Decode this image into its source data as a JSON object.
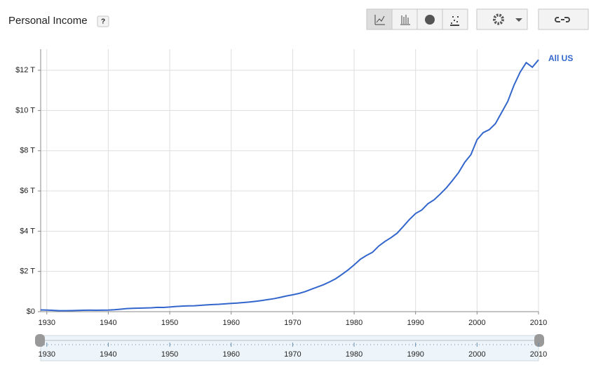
{
  "toolbar": {
    "help": "?"
  },
  "chart_data": {
    "type": "line",
    "title": "Personal Income",
    "x": [
      1929,
      1930,
      1931,
      1932,
      1933,
      1934,
      1935,
      1936,
      1937,
      1938,
      1939,
      1940,
      1941,
      1942,
      1943,
      1944,
      1945,
      1946,
      1947,
      1948,
      1949,
      1950,
      1951,
      1952,
      1953,
      1954,
      1955,
      1956,
      1957,
      1958,
      1959,
      1960,
      1961,
      1962,
      1963,
      1964,
      1965,
      1966,
      1967,
      1968,
      1969,
      1970,
      1971,
      1972,
      1973,
      1974,
      1975,
      1976,
      1977,
      1978,
      1979,
      1980,
      1981,
      1982,
      1983,
      1984,
      1985,
      1986,
      1987,
      1988,
      1989,
      1990,
      1991,
      1992,
      1993,
      1994,
      1995,
      1996,
      1997,
      1998,
      1999,
      2000,
      2001,
      2002,
      2003,
      2004,
      2005,
      2006,
      2007,
      2008,
      2009,
      2010
    ],
    "series": [
      {
        "name": "All US",
        "color": "#3366cc",
        "values": [
          0.085,
          0.077,
          0.065,
          0.05,
          0.047,
          0.054,
          0.06,
          0.069,
          0.074,
          0.069,
          0.073,
          0.079,
          0.097,
          0.124,
          0.152,
          0.166,
          0.173,
          0.181,
          0.192,
          0.212,
          0.21,
          0.23,
          0.258,
          0.273,
          0.289,
          0.292,
          0.313,
          0.336,
          0.353,
          0.365,
          0.389,
          0.41,
          0.427,
          0.455,
          0.479,
          0.514,
          0.555,
          0.603,
          0.648,
          0.712,
          0.78,
          0.838,
          0.903,
          0.992,
          1.111,
          1.223,
          1.337,
          1.478,
          1.637,
          1.846,
          2.07,
          2.324,
          2.601,
          2.79,
          2.953,
          3.259,
          3.488,
          3.678,
          3.901,
          4.237,
          4.582,
          4.879,
          5.051,
          5.362,
          5.559,
          5.843,
          6.152,
          6.521,
          6.915,
          7.423,
          7.802,
          8.55,
          8.9,
          9.05,
          9.35,
          9.9,
          10.45,
          11.25,
          11.9,
          12.38,
          12.15,
          12.52
        ]
      }
    ],
    "xlim": [
      1929,
      2010
    ],
    "xticks": [
      1930,
      1940,
      1950,
      1960,
      1970,
      1980,
      1990,
      2000,
      2010
    ],
    "ylim": [
      0,
      13.05
    ],
    "yticks": [
      {
        "value": 0,
        "label": "$0"
      },
      {
        "value": 2,
        "label": "$2 T"
      },
      {
        "value": 4,
        "label": "$4 T"
      },
      {
        "value": 6,
        "label": "$6 T"
      },
      {
        "value": 8,
        "label": "$8 T"
      },
      {
        "value": 10,
        "label": "$10 T"
      },
      {
        "value": 12,
        "label": "$12 T"
      }
    ],
    "grid": true
  }
}
